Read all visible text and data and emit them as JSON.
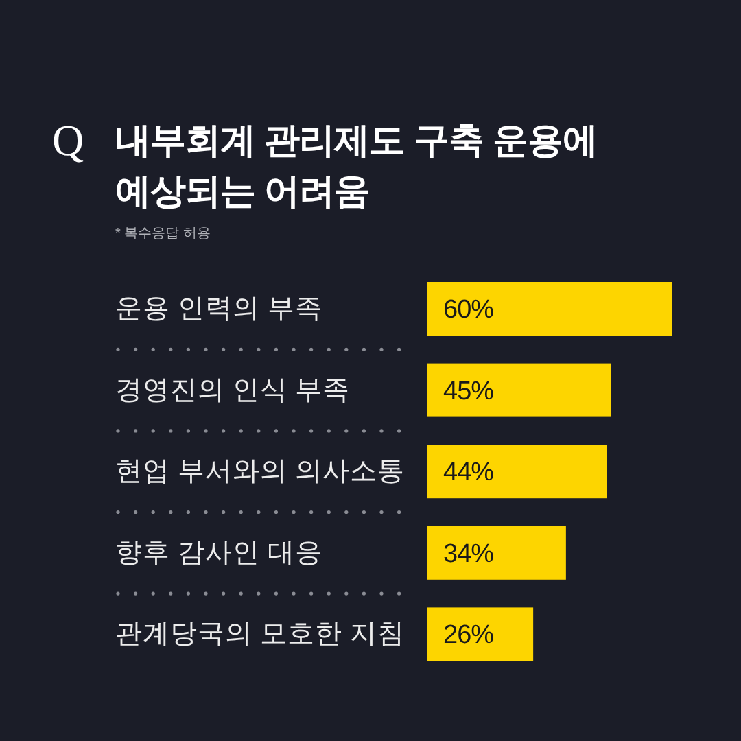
{
  "chart_data": {
    "type": "bar",
    "orientation": "horizontal",
    "title": "내부회계 관리제도 구축 운용에 예상되는 어려움",
    "subtitle": "* 복수응답 허용",
    "annotations": [
      "Q"
    ],
    "categories": [
      "운용 인력의 부족",
      "경영진의 인식 부족",
      "현업 부서와의 의사소통",
      "향후 감사인 대응",
      "관계당국의 모호한 지침"
    ],
    "values": [
      60,
      45,
      44,
      34,
      26
    ],
    "value_labels": [
      "60%",
      "45%",
      "44%",
      "34%",
      "26%"
    ],
    "color": "#fdd500"
  }
}
